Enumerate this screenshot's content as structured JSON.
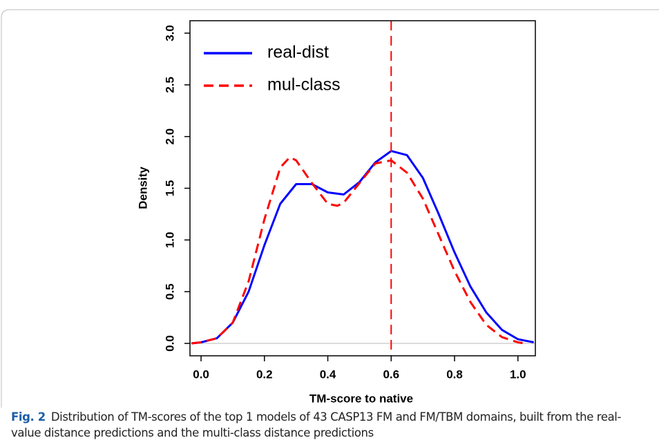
{
  "chart_data": {
    "type": "line",
    "xlabel": "TM-score to native",
    "ylabel": "Density",
    "xlim": [
      -0.035,
      1.055
    ],
    "ylim": [
      -0.12,
      3.12
    ],
    "xticks": [
      {
        "value": 0,
        "label": "0.0"
      },
      0.2,
      0.4,
      0.6,
      0.8,
      {
        "value": 1,
        "label": "1.0"
      }
    ],
    "yticks": [
      {
        "value": 0,
        "label": "0.0"
      },
      0.5,
      {
        "value": 1,
        "label": "1.0"
      },
      1.5,
      {
        "value": 2,
        "label": "2.0"
      },
      2.5,
      {
        "value": 3,
        "label": "3.0"
      }
    ],
    "vline": 0.6,
    "vline_color": "#ff0000",
    "hline": 0,
    "hline_color": "#c8c8c8",
    "legend": "upper left",
    "series": [
      {
        "name": "real-dist",
        "color": "#0000ff",
        "dash": false,
        "x": [
          -0.03,
          0,
          0.05,
          0.1,
          0.15,
          0.2,
          0.25,
          0.3,
          0.35,
          0.4,
          0.45,
          0.5,
          0.55,
          0.6,
          0.65,
          0.7,
          0.75,
          0.8,
          0.85,
          0.9,
          0.95,
          1.0,
          1.05
        ],
        "values": [
          0.0,
          0.01,
          0.05,
          0.2,
          0.5,
          0.95,
          1.35,
          1.54,
          1.54,
          1.46,
          1.44,
          1.56,
          1.75,
          1.86,
          1.82,
          1.6,
          1.25,
          0.88,
          0.55,
          0.3,
          0.13,
          0.04,
          0.01
        ]
      },
      {
        "name": "mul-class",
        "color": "#ff0000",
        "dash": true,
        "x": [
          -0.03,
          0,
          0.05,
          0.1,
          0.15,
          0.2,
          0.25,
          0.28,
          0.3,
          0.35,
          0.4,
          0.43,
          0.45,
          0.5,
          0.55,
          0.6,
          0.65,
          0.7,
          0.75,
          0.8,
          0.85,
          0.9,
          0.95,
          1.0,
          1.02
        ],
        "values": [
          0.0,
          0.01,
          0.05,
          0.2,
          0.6,
          1.2,
          1.7,
          1.8,
          1.77,
          1.55,
          1.35,
          1.33,
          1.36,
          1.55,
          1.74,
          1.77,
          1.65,
          1.4,
          1.05,
          0.7,
          0.4,
          0.18,
          0.06,
          0.01,
          0.0
        ]
      }
    ]
  },
  "caption": {
    "label": "Fig. 2",
    "text": "Distribution of TM-scores of the top 1 models of 43 CASP13 FM and FM/TBM domains, built from the real-value distance predictions and the multi-class distance predictions"
  }
}
